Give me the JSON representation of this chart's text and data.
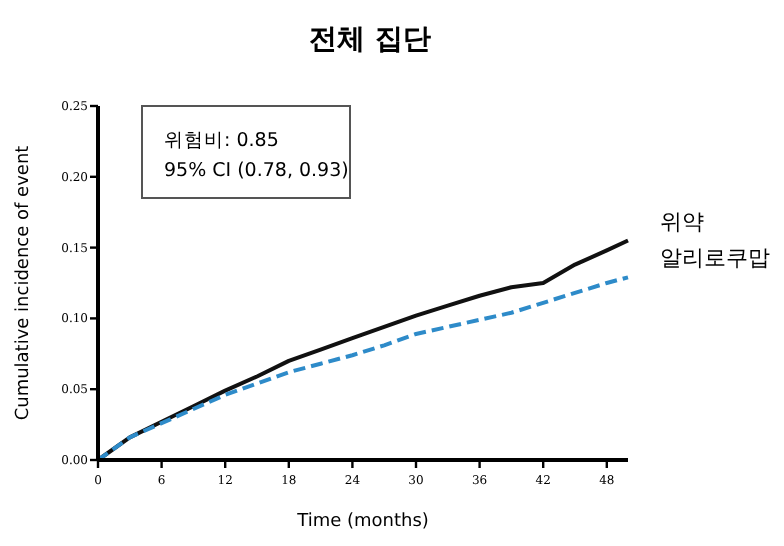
{
  "chart_data": {
    "type": "line",
    "title": "전체 집단",
    "xlabel": "Time (months)",
    "ylabel": "Cumulative incidence of event",
    "xlim": [
      0,
      50
    ],
    "xticks": [
      0,
      6,
      12,
      18,
      24,
      30,
      36,
      42,
      48
    ],
    "ylim": [
      0,
      0.25
    ],
    "yticks": [
      {
        "value": 0,
        "label": "0.00"
      },
      {
        "value": 0.05,
        "label": "0.05"
      },
      {
        "value": 0.1,
        "label": "0.10"
      },
      {
        "value": 0.15,
        "label": "0.15"
      },
      {
        "value": 0.2,
        "label": "0.20"
      },
      {
        "value": 0.25,
        "label": "0.25"
      }
    ],
    "x": [
      0,
      3,
      6,
      9,
      12,
      15,
      18,
      21,
      24,
      27,
      30,
      33,
      36,
      39,
      42,
      45,
      48,
      50
    ],
    "series": [
      {
        "name": "위약",
        "color": "#111111",
        "line_style": "solid",
        "values": [
          0,
          0.016,
          0.027,
          0.038,
          0.049,
          0.059,
          0.07,
          0.078,
          0.086,
          0.094,
          0.102,
          0.109,
          0.116,
          0.122,
          0.125,
          0.138,
          0.148,
          0.155
        ]
      },
      {
        "name": "알리로쿠맙",
        "color": "#2e8bc9",
        "line_style": "dashed",
        "values": [
          0,
          0.016,
          0.026,
          0.036,
          0.046,
          0.054,
          0.062,
          0.068,
          0.074,
          0.081,
          0.089,
          0.094,
          0.099,
          0.104,
          0.111,
          0.118,
          0.125,
          0.129
        ]
      }
    ],
    "annotations": [
      "위험비: 0.85",
      "95% CI (0.78, 0.93)"
    ],
    "legend": false,
    "grid": false,
    "marker": "none"
  }
}
